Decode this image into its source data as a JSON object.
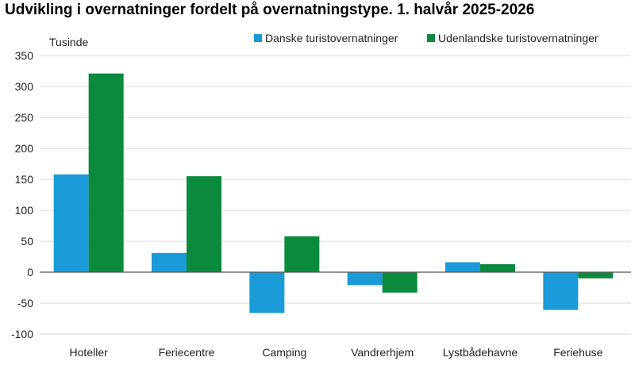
{
  "title": "Udvikling i overnatninger fordelt på overnatningstype. 1. halvår 2025-2026",
  "chart_data": {
    "type": "bar",
    "title": "Udvikling i overnatninger fordelt på overnatningstype. 1. halvår 2025-2026",
    "ylabel": "Tusinde",
    "xlabel": "",
    "categories": [
      "Hoteller",
      "Feriecentre",
      "Camping",
      "Vandrerhjem",
      "Lystbådehavne",
      "Feriehuse"
    ],
    "series": [
      {
        "name": "Danske turistovernatninger",
        "color": "#1a9ad6",
        "values": [
          158,
          31,
          -66,
          -21,
          16,
          -61
        ]
      },
      {
        "name": "Udenlandske turistovernatninger",
        "color": "#0b8a3e",
        "values": [
          321,
          155,
          58,
          -33,
          13,
          -10
        ]
      }
    ],
    "ylim": [
      -100,
      350
    ],
    "yticks": [
      -100,
      -50,
      0,
      50,
      100,
      150,
      200,
      250,
      300,
      350
    ],
    "ytick_labels": [
      "-100",
      "-50",
      "0",
      "50",
      "100",
      "150",
      "200",
      "250",
      "300",
      "350"
    ],
    "grid": true,
    "legend_position": "top"
  }
}
